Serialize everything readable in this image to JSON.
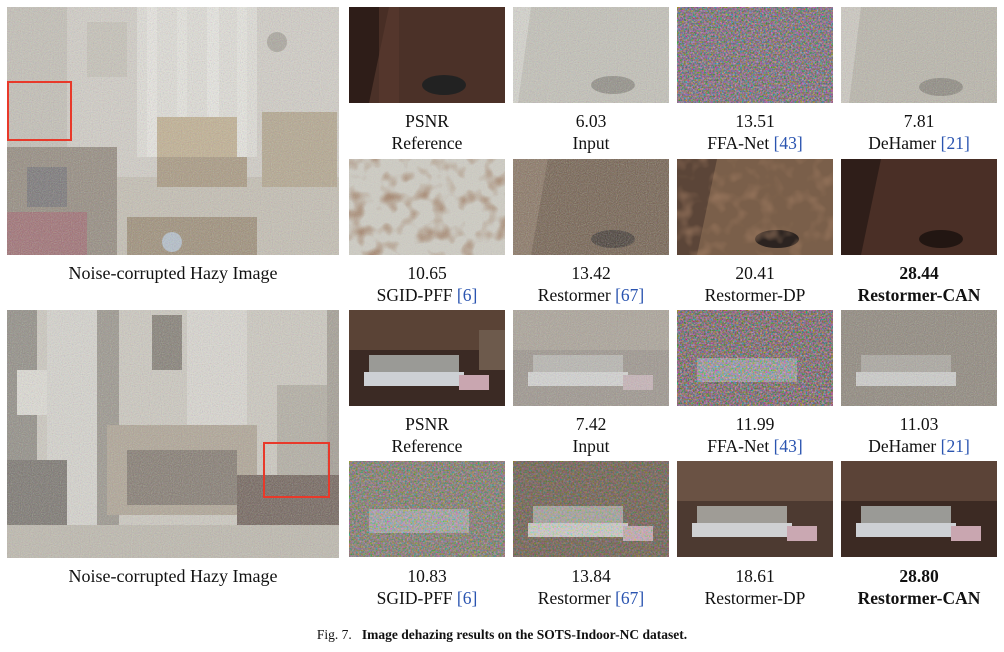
{
  "blocks": [
    {
      "main_caption": "Noise-corrupted Hazy Image",
      "cells": [
        {
          "top": "PSNR",
          "bottom": "Reference",
          "ref": "",
          "bold": false
        },
        {
          "top": "6.03",
          "bottom": "Input",
          "ref": "",
          "bold": false
        },
        {
          "top": "13.51",
          "bottom": "FFA-Net",
          "ref": "43",
          "bold": false
        },
        {
          "top": "7.81",
          "bottom": "DeHamer",
          "ref": "21",
          "bold": false
        },
        {
          "top": "10.65",
          "bottom": "SGID-PFF",
          "ref": "6",
          "bold": false
        },
        {
          "top": "13.42",
          "bottom": "Restormer",
          "ref": "67",
          "bold": false
        },
        {
          "top": "20.41",
          "bottom": "Restormer-DP",
          "ref": "",
          "bold": false
        },
        {
          "top": "28.44",
          "bottom": "Restormer-CAN",
          "ref": "",
          "bold": true
        }
      ]
    },
    {
      "main_caption": "Noise-corrupted Hazy Image",
      "cells": [
        {
          "top": "PSNR",
          "bottom": "Reference",
          "ref": "",
          "bold": false
        },
        {
          "top": "7.42",
          "bottom": "Input",
          "ref": "",
          "bold": false
        },
        {
          "top": "11.99",
          "bottom": "FFA-Net",
          "ref": "43",
          "bold": false
        },
        {
          "top": "11.03",
          "bottom": "DeHamer",
          "ref": "21",
          "bold": false
        },
        {
          "top": "10.83",
          "bottom": "SGID-PFF",
          "ref": "6",
          "bold": false
        },
        {
          "top": "13.84",
          "bottom": "Restormer",
          "ref": "67",
          "bold": false
        },
        {
          "top": "18.61",
          "bottom": "Restormer-DP",
          "ref": "",
          "bold": false
        },
        {
          "top": "28.80",
          "bottom": "Restormer-CAN",
          "ref": "",
          "bold": true
        }
      ]
    }
  ],
  "figure_caption": {
    "label": "Fig. 7.",
    "text": "Image dehazing results on the SOTS-Indoor-NC dataset."
  }
}
